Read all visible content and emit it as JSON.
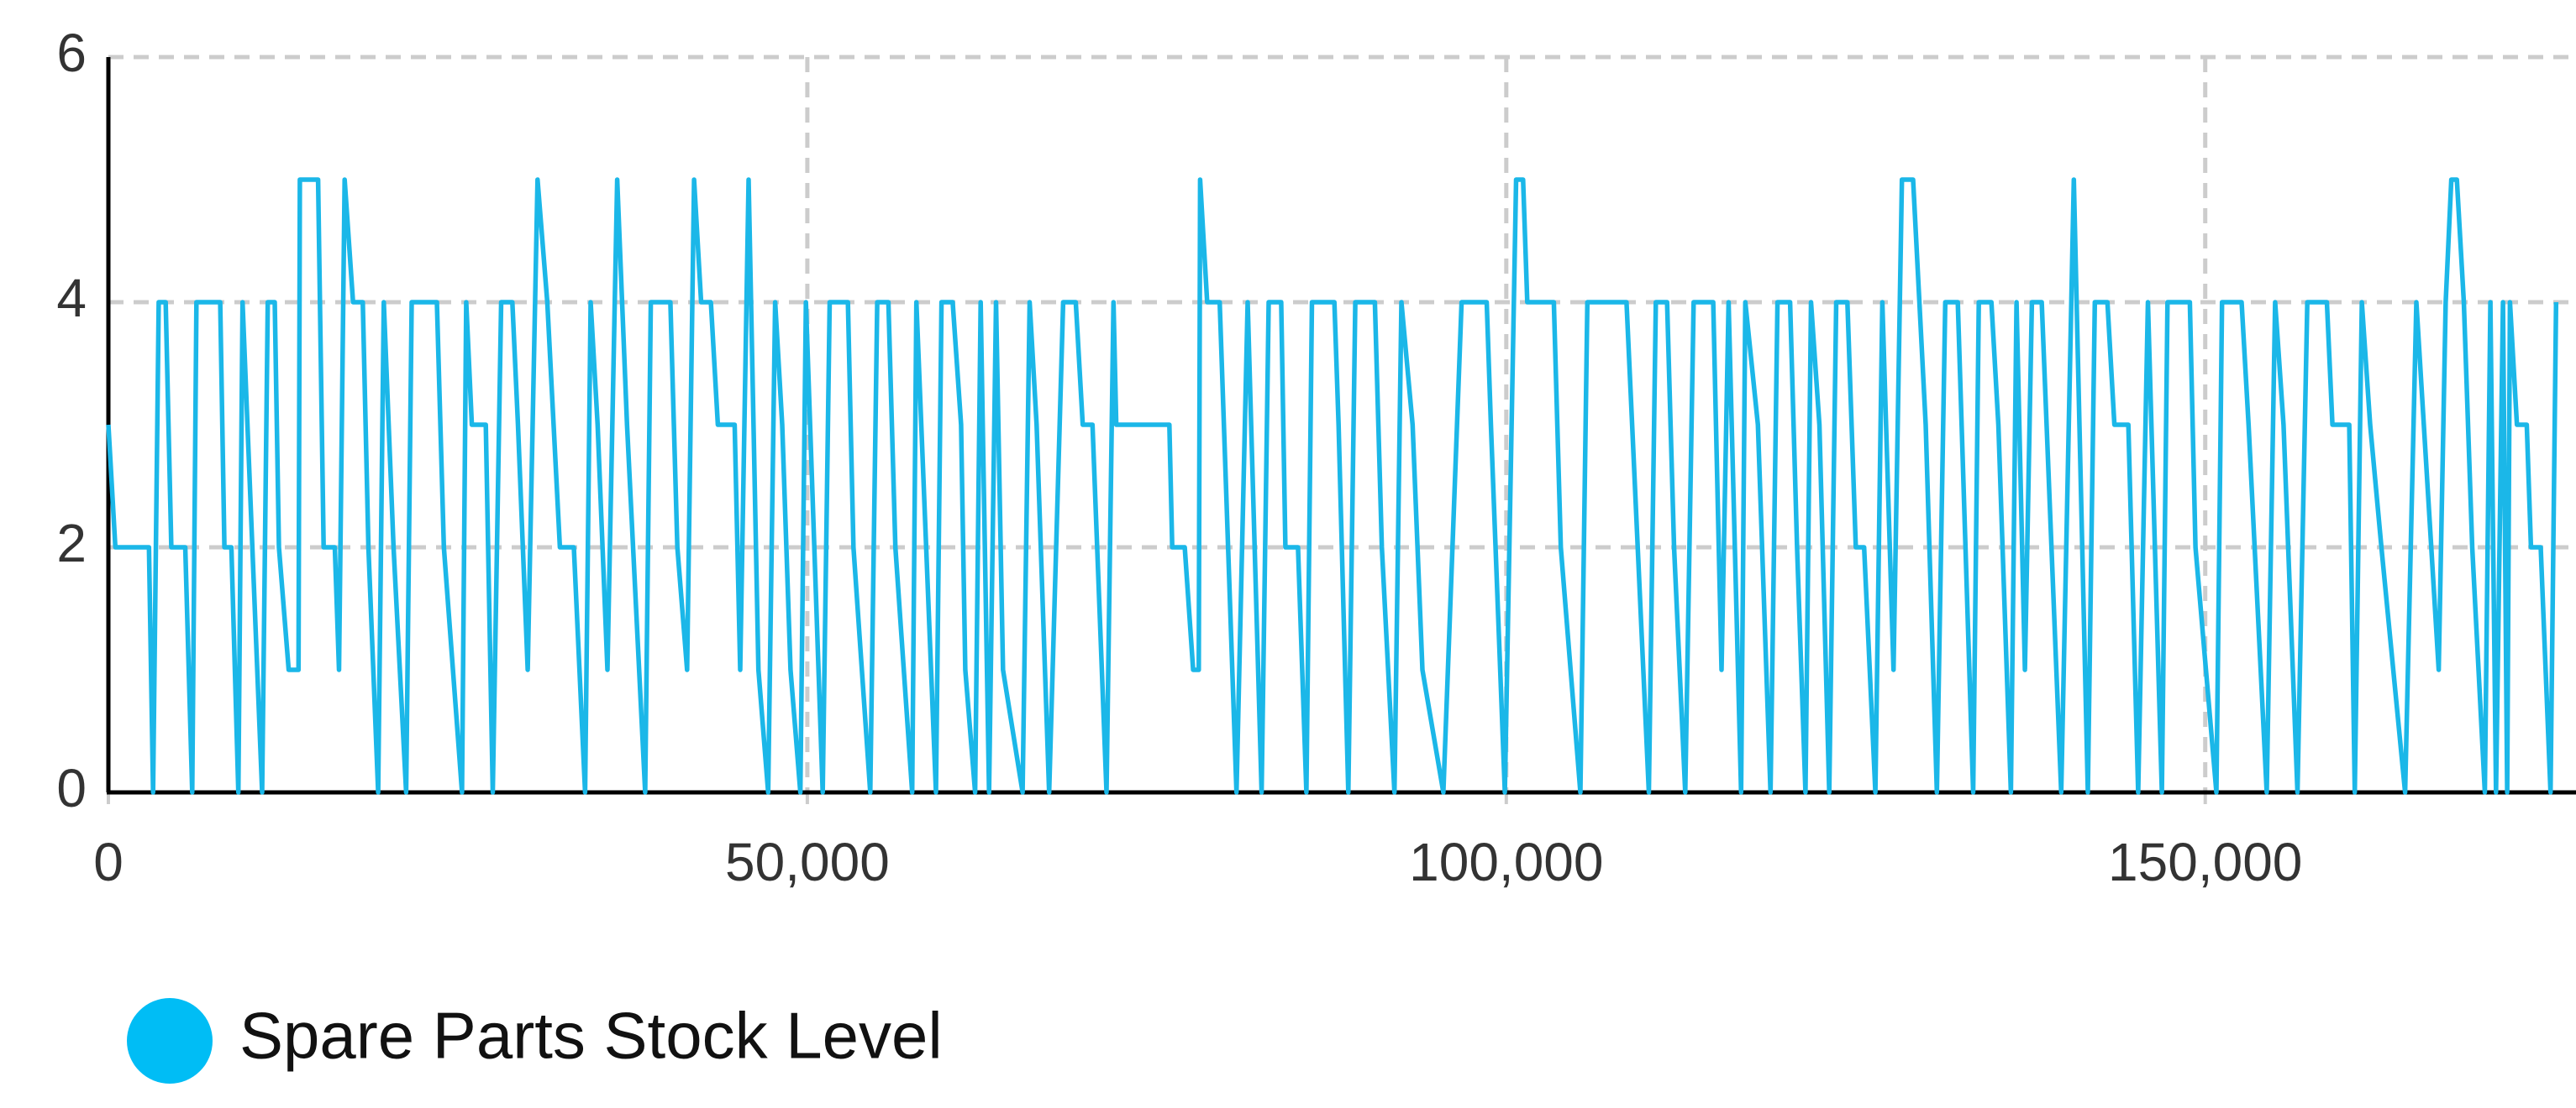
{
  "chart_data": {
    "type": "line",
    "x": [
      0,
      500,
      2900,
      3200,
      3600,
      4100,
      4500,
      5500,
      6000,
      6300,
      8000,
      8300,
      8800,
      9300,
      9600,
      11000,
      11400,
      11900,
      12200,
      12900,
      13600,
      13700,
      15000,
      15400,
      16200,
      16500,
      16900,
      17500,
      18200,
      18600,
      19300,
      19700,
      20400,
      21300,
      21700,
      23500,
      24000,
      25300,
      25600,
      26000,
      27000,
      27500,
      28100,
      28900,
      29300,
      30000,
      30700,
      31400,
      32300,
      33300,
      34100,
      34500,
      35000,
      35700,
      36400,
      37100,
      38400,
      38800,
      40200,
      40700,
      41400,
      41900,
      42400,
      43100,
      43600,
      44800,
      45200,
      45800,
      46500,
      47200,
      47700,
      48200,
      48800,
      49500,
      49900,
      51100,
      51600,
      52900,
      53300,
      54500,
      55000,
      55800,
      56300,
      57500,
      57800,
      59200,
      59600,
      60400,
      61000,
      61300,
      62000,
      62400,
      63000,
      63500,
      64000,
      65400,
      65900,
      66400,
      67300,
      68300,
      69200,
      69700,
      70400,
      71400,
      71900,
      72100,
      75900,
      76100,
      77000,
      77600,
      78000,
      78100,
      78600,
      79500,
      79800,
      80700,
      81500,
      82500,
      83000,
      83900,
      84200,
      85100,
      85700,
      86100,
      87700,
      88000,
      88700,
      89200,
      90600,
      91100,
      92000,
      92500,
      93300,
      94000,
      95500,
      96800,
      98600,
      98900,
      99900,
      100700,
      101200,
      101500,
      103400,
      103900,
      105300,
      105800,
      108600,
      109000,
      110200,
      110700,
      111500,
      112000,
      112800,
      113400,
      114800,
      115400,
      115900,
      116800,
      117100,
      118000,
      118900,
      119400,
      120300,
      120800,
      121400,
      121800,
      122400,
      123100,
      123600,
      124400,
      125000,
      125600,
      126400,
      126900,
      127700,
      128300,
      129100,
      130000,
      130800,
      131400,
      132300,
      133400,
      133800,
      134700,
      135200,
      136100,
      136500,
      137100,
      137600,
      138300,
      139000,
      139700,
      140600,
      141600,
      142100,
      143000,
      143500,
      144500,
      145200,
      145900,
      146900,
      147300,
      148900,
      149300,
      150800,
      151200,
      152600,
      153100,
      154400,
      155000,
      155600,
      156600,
      157300,
      158700,
      159100,
      160300,
      160700,
      161200,
      161800,
      162600,
      164300,
      165100,
      166700,
      167200,
      167600,
      168000,
      168500,
      169100,
      170000,
      170400,
      170800,
      171300,
      171600,
      171800,
      172300,
      173000,
      173300,
      174000,
      174700,
      175100
    ],
    "series": [
      {
        "name": "Spare Parts Stock Level",
        "color": "#1bb7e8",
        "values": [
          3,
          2,
          2,
          0,
          4,
          4,
          2,
          2,
          0,
          4,
          4,
          2,
          2,
          0,
          4,
          0,
          4,
          4,
          2,
          1,
          1,
          5,
          5,
          2,
          2,
          1,
          5,
          4,
          4,
          2,
          0,
          4,
          2,
          0,
          4,
          4,
          2,
          0,
          4,
          3,
          3,
          0,
          4,
          4,
          3,
          1,
          5,
          4,
          2,
          2,
          0,
          4,
          3,
          1,
          5,
          3,
          0,
          4,
          4,
          2,
          1,
          5,
          4,
          4,
          3,
          3,
          1,
          5,
          1,
          0,
          4,
          3,
          1,
          0,
          4,
          0,
          4,
          4,
          2,
          0,
          4,
          4,
          2,
          0,
          4,
          0,
          4,
          4,
          3,
          1,
          0,
          4,
          0,
          4,
          1,
          0,
          4,
          3,
          0,
          4,
          4,
          3,
          3,
          0,
          4,
          3,
          3,
          2,
          2,
          1,
          1,
          5,
          4,
          4,
          3,
          0,
          4,
          0,
          4,
          4,
          2,
          2,
          0,
          4,
          4,
          3,
          0,
          4,
          4,
          2,
          0,
          4,
          3,
          1,
          0,
          4,
          4,
          3,
          0,
          5,
          5,
          4,
          4,
          2,
          0,
          4,
          4,
          3,
          0,
          4,
          4,
          2,
          0,
          4,
          4,
          1,
          4,
          0,
          4,
          3,
          0,
          4,
          4,
          2,
          0,
          4,
          3,
          0,
          4,
          4,
          2,
          2,
          0,
          4,
          1,
          5,
          5,
          3,
          0,
          4,
          4,
          0,
          4,
          4,
          3,
          0,
          4,
          1,
          4,
          4,
          2,
          0,
          5,
          0,
          4,
          4,
          3,
          3,
          0,
          4,
          0,
          4,
          4,
          2,
          0,
          4,
          4,
          3,
          0,
          4,
          3,
          0,
          4,
          4,
          3,
          3,
          0,
          4,
          3,
          2,
          0,
          4,
          1,
          4,
          5,
          5,
          4,
          2,
          0,
          4,
          0,
          4,
          0,
          4,
          3,
          3,
          2,
          2,
          0,
          4
        ]
      }
    ],
    "xlim": [
      0,
      175200
    ],
    "ylim": [
      0,
      6
    ],
    "xticks": [
      0,
      {
        "value": 50000,
        "label": "50,000"
      },
      {
        "value": 100000,
        "label": "100,000"
      },
      {
        "value": 150000,
        "label": "150,000"
      }
    ],
    "yticks": [
      0,
      2,
      4,
      6
    ],
    "grid": true,
    "legend": "bottom-left"
  }
}
